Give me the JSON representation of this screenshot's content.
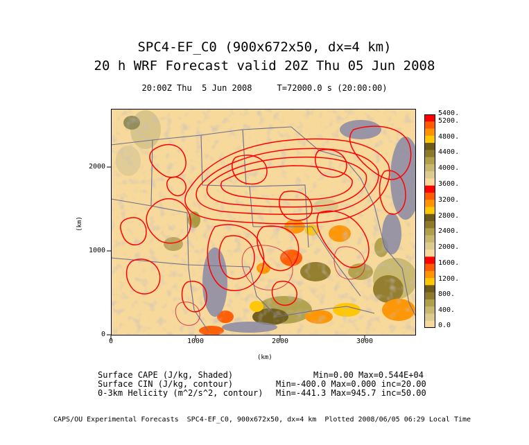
{
  "title": {
    "line1": "SPC4-EF_C0 (900x672x50, dx=4 km)",
    "line2": "20 h WRF Forecast valid 20Z Thu 05 Jun 2008",
    "time_line": "20:00Z Thu  5 Jun 2008     T=72000.0 s (20:00:00)"
  },
  "axes": {
    "x_label": "(km)",
    "y_label": "(km)",
    "x_ticks": [
      "0",
      "1000",
      "2000",
      "3000"
    ],
    "y_ticks": [
      "0",
      "1000",
      "2000"
    ]
  },
  "colorbar": {
    "labels": [
      "5400.",
      "5200.",
      "4800.",
      "4400.",
      "4000.",
      "3600.",
      "3200.",
      "2800.",
      "2400.",
      "2000.",
      "1600.",
      "1200.",
      "800.",
      "400.",
      "0.0"
    ],
    "colors": [
      "#ff0000",
      "#ff5a00",
      "#ff9400",
      "#ffc800",
      "#6b5a19",
      "#8f7a2a",
      "#b0a04a",
      "#c8b86e",
      "#dcca8e",
      "#f7d99b"
    ]
  },
  "legend": [
    {
      "name": "Surface CAPE (J/kg, Shaded)",
      "stats": "Min=0.00 Max=0.544E+04"
    },
    {
      "name": "Surface CIN (J/kg, contour)",
      "stats": "Min=-400.0 Max=0.000 inc=20.00"
    },
    {
      "name": "0-3km Helicity (m^2/s^2, contour)",
      "stats": "Min=-441.3 Max=945.7 inc=50.00"
    }
  ],
  "footer": "CAPS/OU Experimental Forecasts  SPC4-EF_C0, 900x672x50, dx=4 km  Plotted 2008/06/05 06:29 Local Time"
}
